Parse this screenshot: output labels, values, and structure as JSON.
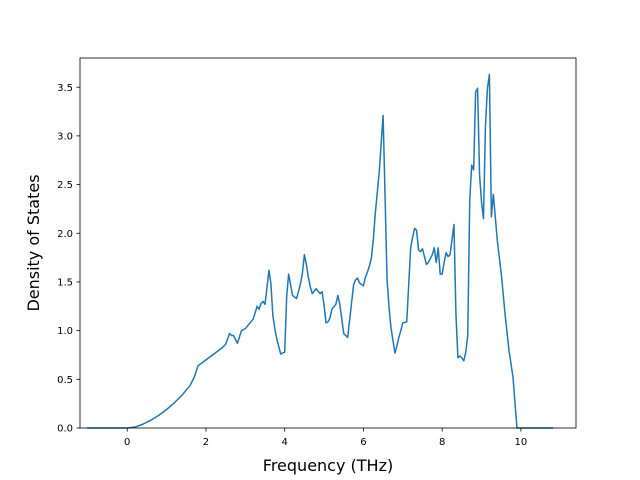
{
  "chart_data": {
    "type": "line",
    "title": "",
    "xlabel": "Frequency (THz)",
    "ylabel": "Density of States",
    "xlim": [
      -1.2,
      11.4
    ],
    "ylim": [
      0.0,
      3.8
    ],
    "xticks": [
      0,
      2,
      4,
      6,
      8,
      10
    ],
    "xtick_labels": [
      "0",
      "2",
      "4",
      "6",
      "8",
      "10"
    ],
    "yticks": [
      0.0,
      0.5,
      1.0,
      1.5,
      2.0,
      2.5,
      3.0,
      3.5
    ],
    "ytick_labels": [
      "0.0",
      "0.5",
      "1.0",
      "1.5",
      "2.0",
      "2.5",
      "3.0",
      "3.5"
    ],
    "grid": false,
    "series": [
      {
        "color": "#1f77b4",
        "x": [
          -1.0,
          -0.5,
          0.0,
          0.2,
          0.4,
          0.6,
          0.8,
          1.0,
          1.2,
          1.4,
          1.6,
          1.7,
          1.75,
          1.8,
          2.0,
          2.2,
          2.4,
          2.5,
          2.6,
          2.65,
          2.7,
          2.8,
          2.9,
          3.0,
          3.1,
          3.2,
          3.3,
          3.35,
          3.4,
          3.45,
          3.5,
          3.6,
          3.65,
          3.7,
          3.75,
          3.8,
          3.9,
          4.0,
          4.05,
          4.1,
          4.2,
          4.3,
          4.35,
          4.4,
          4.45,
          4.5,
          4.55,
          4.6,
          4.65,
          4.7,
          4.8,
          4.9,
          4.95,
          5.0,
          5.05,
          5.1,
          5.15,
          5.2,
          5.3,
          5.35,
          5.4,
          5.5,
          5.6,
          5.7,
          5.75,
          5.8,
          5.85,
          5.9,
          6.0,
          6.05,
          6.1,
          6.15,
          6.2,
          6.25,
          6.3,
          6.4,
          6.5,
          6.6,
          6.65,
          6.7,
          6.8,
          6.85,
          6.9,
          6.95,
          7.0,
          7.1,
          7.2,
          7.25,
          7.3,
          7.35,
          7.4,
          7.45,
          7.5,
          7.55,
          7.6,
          7.65,
          7.7,
          7.75,
          7.8,
          7.85,
          7.9,
          7.95,
          8.0,
          8.05,
          8.1,
          8.15,
          8.2,
          8.3,
          8.35,
          8.4,
          8.45,
          8.5,
          8.55,
          8.6,
          8.65,
          8.7,
          8.75,
          8.8,
          8.85,
          8.9,
          8.95,
          9.0,
          9.05,
          9.1,
          9.15,
          9.2,
          9.25,
          9.3,
          9.4,
          9.5,
          9.6,
          9.7,
          9.8,
          9.9,
          10.0,
          10.5,
          10.8
        ],
        "y": [
          0.0,
          0.0,
          0.0,
          0.01,
          0.04,
          0.08,
          0.13,
          0.19,
          0.26,
          0.34,
          0.44,
          0.52,
          0.58,
          0.64,
          0.7,
          0.76,
          0.82,
          0.86,
          0.97,
          0.95,
          0.95,
          0.87,
          1.0,
          1.02,
          1.07,
          1.12,
          1.25,
          1.22,
          1.28,
          1.3,
          1.27,
          1.62,
          1.48,
          1.15,
          1.02,
          0.91,
          0.76,
          0.78,
          1.35,
          1.58,
          1.36,
          1.33,
          1.4,
          1.48,
          1.59,
          1.78,
          1.68,
          1.55,
          1.45,
          1.38,
          1.43,
          1.38,
          1.4,
          1.26,
          1.08,
          1.09,
          1.13,
          1.22,
          1.27,
          1.36,
          1.27,
          0.97,
          0.93,
          1.29,
          1.47,
          1.52,
          1.54,
          1.49,
          1.46,
          1.55,
          1.6,
          1.66,
          1.74,
          1.93,
          2.2,
          2.62,
          3.21,
          1.53,
          1.24,
          1.03,
          0.77,
          0.84,
          0.93,
          1.0,
          1.08,
          1.09,
          1.85,
          1.96,
          2.05,
          2.03,
          1.83,
          1.81,
          1.84,
          1.76,
          1.68,
          1.7,
          1.74,
          1.78,
          1.85,
          1.7,
          1.85,
          1.58,
          1.58,
          1.7,
          1.8,
          1.76,
          1.78,
          2.09,
          1.17,
          0.72,
          0.74,
          0.72,
          0.69,
          0.78,
          0.95,
          2.33,
          2.7,
          2.65,
          3.45,
          3.49,
          2.6,
          2.32,
          2.15,
          3.11,
          3.49,
          3.63,
          2.17,
          2.4,
          1.93,
          1.59,
          1.16,
          0.79,
          0.52,
          0.0,
          0.0,
          0.0,
          0.0
        ]
      }
    ]
  }
}
